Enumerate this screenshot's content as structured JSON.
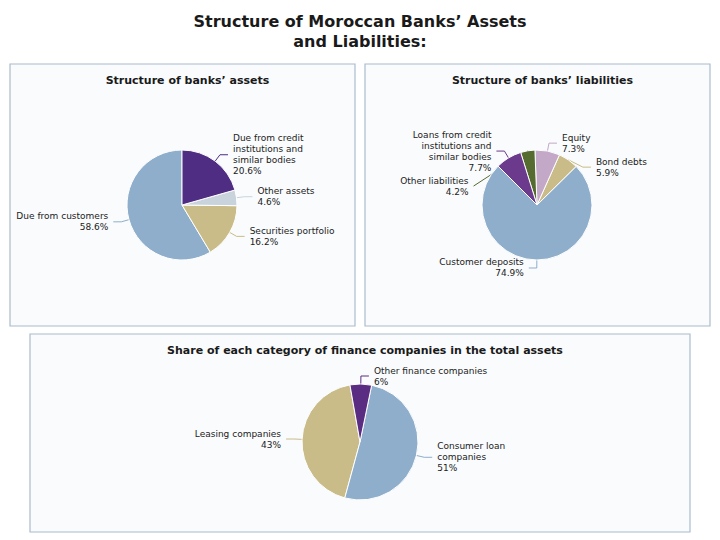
{
  "title": "Structure of Moroccan Banks’ Assets\nand Liabilities:",
  "chart_data": [
    {
      "type": "pie",
      "title": "Structure of banks’ assets",
      "categories": [
        "Due from customers",
        "Securities portfolio",
        "Other assets",
        "Due from credit\ninstitutions and\nsimilar bodies"
      ],
      "values": [
        58.6,
        16.2,
        4.6,
        20.6
      ],
      "value_labels": [
        "58.6%",
        "16.2%",
        "4.6%",
        "20.6%"
      ],
      "colors": [
        "#8eaecb",
        "#c9bc88",
        "#c9d3dc",
        "#4e2d82"
      ],
      "data_labels": true
    },
    {
      "type": "pie",
      "title": "Structure of banks’ liabilities",
      "categories": [
        "Customer deposits",
        "Bond debts",
        "Equity",
        "Other liabilities",
        "Loans from credit\ninstitutions and\nsimilar bodies"
      ],
      "values": [
        74.9,
        5.9,
        7.3,
        4.2,
        7.7
      ],
      "value_labels": [
        "74.9%",
        "5.9%",
        "7.3%",
        "4.2%",
        "7.7%"
      ],
      "colors": [
        "#8eaecb",
        "#c9bc88",
        "#c3a8c8",
        "#556b2f",
        "#6b3a8c"
      ],
      "data_labels": true
    },
    {
      "type": "pie",
      "title": "Share of each category of finance companies in the total assets",
      "categories": [
        "Leasing companies",
        "Consumer loan\ncompanies",
        "Other finance companies"
      ],
      "values": [
        43,
        51,
        6
      ],
      "value_labels": [
        "43%",
        "51%",
        "6%"
      ],
      "colors": [
        "#c9bc88",
        "#8eaecb",
        "#5a2d82"
      ],
      "data_labels": true
    }
  ]
}
